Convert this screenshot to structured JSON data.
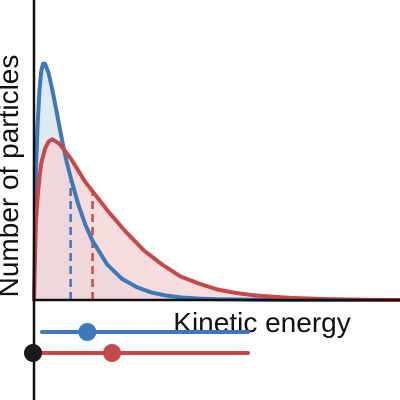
{
  "chart_data": {
    "type": "area",
    "title": "",
    "xlabel": "Kinetic energy",
    "ylabel": "Number of particles",
    "xlim": [
      0,
      10
    ],
    "ylim": [
      0,
      1.1
    ],
    "grid": false,
    "legend": "none",
    "series": [
      {
        "color": "#3d78b8",
        "fill": "#d6e3f1",
        "mean_marker_x": 1.0,
        "x": [
          0,
          0.05,
          0.1,
          0.15,
          0.2,
          0.25,
          0.3,
          0.4,
          0.5,
          0.6,
          0.7,
          0.8,
          0.9,
          1.0,
          1.2,
          1.4,
          1.6,
          1.8,
          2.0,
          2.4,
          2.8,
          3.2,
          3.6,
          4.0,
          4.5,
          5.0,
          6.0,
          7.0,
          8.0,
          10.0
        ],
        "y": [
          0,
          0.53,
          0.75,
          0.89,
          0.97,
          1.0,
          1.0,
          0.96,
          0.89,
          0.81,
          0.73,
          0.65,
          0.58,
          0.52,
          0.41,
          0.32,
          0.25,
          0.2,
          0.15,
          0.09,
          0.055,
          0.032,
          0.019,
          0.011,
          0.006,
          0.003,
          0.001,
          0.0,
          0.0,
          0.0
        ]
      },
      {
        "color": "#c84848",
        "fill": "#f4d2d2",
        "mean_marker_x": 1.6,
        "x": [
          0,
          0.05,
          0.1,
          0.15,
          0.2,
          0.3,
          0.4,
          0.5,
          0.6,
          0.7,
          0.8,
          1.0,
          1.2,
          1.4,
          1.6,
          1.8,
          2.0,
          2.5,
          3.0,
          3.5,
          4.0,
          4.5,
          5.0,
          5.5,
          6.0,
          7.0,
          8.0,
          9.0,
          10.0
        ],
        "y": [
          0,
          0.32,
          0.44,
          0.52,
          0.58,
          0.64,
          0.67,
          0.68,
          0.67,
          0.66,
          0.64,
          0.6,
          0.55,
          0.5,
          0.46,
          0.42,
          0.38,
          0.29,
          0.21,
          0.15,
          0.1,
          0.07,
          0.045,
          0.03,
          0.02,
          0.009,
          0.004,
          0.001,
          0.0
        ]
      }
    ],
    "sliders": [
      {
        "color": "#3d78b8",
        "range": [
          0,
          5
        ],
        "value": 1.1
      },
      {
        "color": "#c84848",
        "range": [
          0,
          5
        ],
        "value": 1.7
      }
    ]
  }
}
